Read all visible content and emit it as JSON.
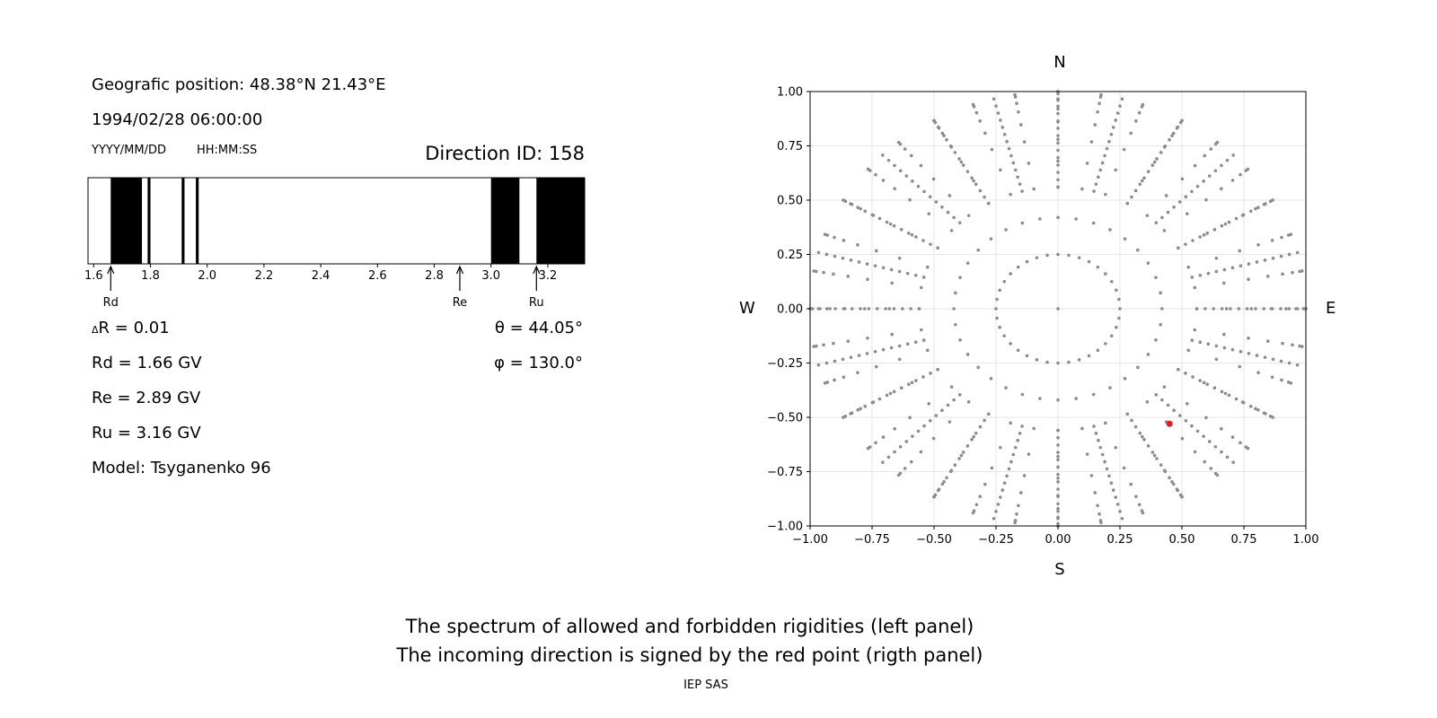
{
  "left_panel": {
    "position_line": "Geografic position: 48.38°N 21.43°E",
    "datetime_line": "1994/02/28 06:00:00",
    "date_format_label": "YYYY/MM/DD",
    "time_format_label": "HH:MM:SS",
    "direction_id": "Direction ID: 158",
    "delta_r": "R = 0.01",
    "delta_symbol": "Δ",
    "rd": "Rd = 1.66 GV",
    "re": "Re = 2.89 GV",
    "ru": "Ru = 3.16 GV",
    "model": "Model: Tsyganenko 96",
    "theta": "θ = 44.05°",
    "phi": "φ = 130.0°"
  },
  "right_panel": {
    "north": "N",
    "south": "S",
    "west": "W",
    "east": "E"
  },
  "footer": {
    "line1": "The spectrum of allowed and forbidden rigidities (left panel)",
    "line2": "The incoming direction is signed by the red point (rigth panel)",
    "credit": "IEP SAS"
  },
  "colors": {
    "forbidden": "#000000",
    "allowed": "#ffffff",
    "direction_points": "#8c8c8c",
    "incoming_direction": "#e41a1c",
    "grid": "#e6e6e6"
  },
  "chart_data": [
    {
      "type": "bar",
      "xlim": [
        1.58,
        3.33
      ],
      "x_ticks": [
        "1.6",
        "1.8",
        "2.0",
        "2.2",
        "2.4",
        "2.6",
        "2.8",
        "3.0",
        "3.2"
      ],
      "forbidden_bands": [
        [
          1.66,
          1.77
        ],
        [
          1.79,
          1.8
        ],
        [
          1.91,
          1.92
        ],
        [
          1.96,
          1.97
        ],
        [
          3.0,
          3.1
        ],
        [
          3.16,
          3.33
        ]
      ],
      "markers": [
        {
          "label": "Rd",
          "x": 1.66
        },
        {
          "label": "Re",
          "x": 2.89
        },
        {
          "label": "Ru",
          "x": 3.16
        }
      ]
    },
    {
      "type": "scatter",
      "xlim": [
        -1,
        1
      ],
      "ylim": [
        -1,
        1
      ],
      "grid": true,
      "x_ticks": [
        "−1.00",
        "−0.75",
        "−0.50",
        "−0.25",
        "0.00",
        "0.25",
        "0.50",
        "0.75",
        "1.00"
      ],
      "y_ticks": [
        "1.00",
        "0.75",
        "0.50",
        "0.25",
        "0.00",
        "−0.25",
        "−0.50",
        "−0.75",
        "−1.00"
      ],
      "grid_directions": {
        "zenith": [
          0,
          0
        ],
        "rings": [
          {
            "radius": 0.25,
            "points": 36
          },
          {
            "radius": 0.42,
            "points": 36
          },
          {
            "radius": 0.56,
            "points": 36
          },
          {
            "radius": 0.68,
            "points": 36
          },
          {
            "radius": 0.78,
            "points": 36
          },
          {
            "radius": 0.86,
            "points": 36
          },
          {
            "radius": 0.92,
            "points": 36
          },
          {
            "radius": 0.96,
            "points": 36
          },
          {
            "radius": 0.99,
            "points": 36
          },
          {
            "radius": 1.0,
            "points": 36
          }
        ],
        "radial_spokes": 24,
        "spoke_radius_range": [
          0.56,
          1.0
        ],
        "spoke_samples": 14
      },
      "incoming_direction": {
        "x": 0.45,
        "y": -0.53
      }
    }
  ]
}
